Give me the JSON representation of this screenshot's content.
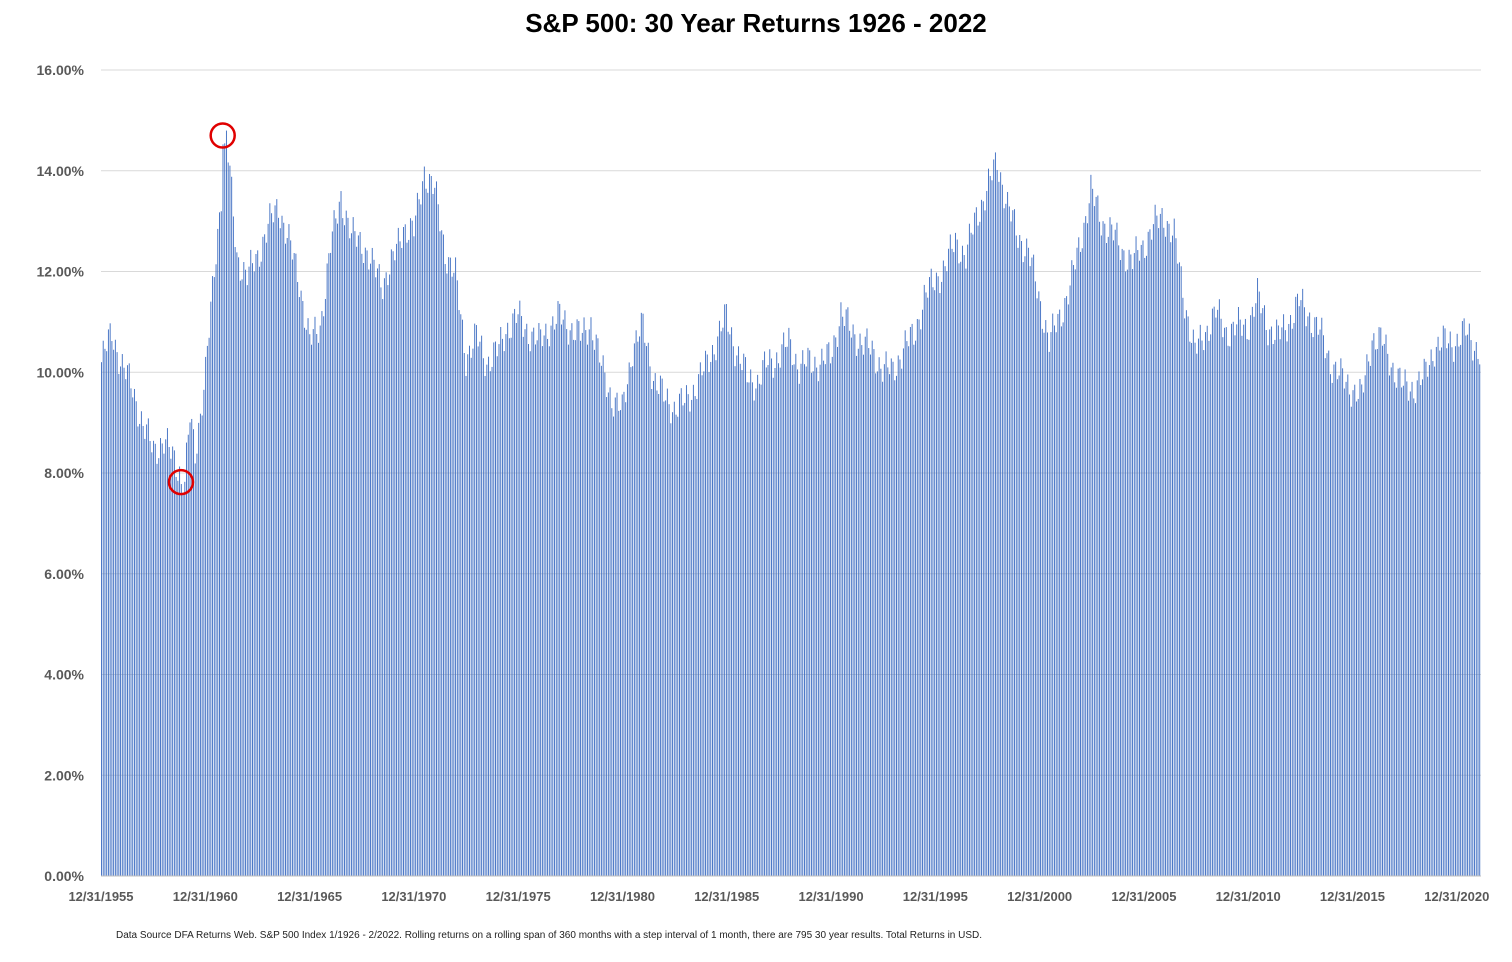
{
  "chart_data": {
    "type": "bar",
    "title": "S&P 500: 30 Year Returns 1926 - 2022",
    "footnote": "Data Source DFA Returns Web. S&P 500 Index 1/1926 - 2/2022. Rolling returns on a rolling span of 360 months with a step interval of 1 month, there are 795 30 year results. Total Returns in USD.",
    "xlabel": "",
    "ylabel": "",
    "ylim": [
      0,
      0.16
    ],
    "yticks": [
      {
        "value": 0.0,
        "label": "0.00%"
      },
      {
        "value": 0.02,
        "label": "2.00%"
      },
      {
        "value": 0.04,
        "label": "4.00%"
      },
      {
        "value": 0.06,
        "label": "6.00%"
      },
      {
        "value": 0.08,
        "label": "8.00%"
      },
      {
        "value": 0.1,
        "label": "10.00%"
      },
      {
        "value": 0.12,
        "label": "12.00%"
      },
      {
        "value": 0.14,
        "label": "14.00%"
      },
      {
        "value": 0.16,
        "label": "16.00%"
      }
    ],
    "xticks": [
      {
        "date": "1955-12-31",
        "label": "12/31/1955"
      },
      {
        "date": "1960-12-31",
        "label": "12/31/1960"
      },
      {
        "date": "1965-12-31",
        "label": "12/31/1965"
      },
      {
        "date": "1970-12-31",
        "label": "12/31/1970"
      },
      {
        "date": "1975-12-31",
        "label": "12/31/1975"
      },
      {
        "date": "1980-12-31",
        "label": "12/31/1980"
      },
      {
        "date": "1985-12-31",
        "label": "12/31/1985"
      },
      {
        "date": "1990-12-31",
        "label": "12/31/1990"
      },
      {
        "date": "1995-12-31",
        "label": "12/31/1995"
      },
      {
        "date": "2000-12-31",
        "label": "12/31/2000"
      },
      {
        "date": "2005-12-31",
        "label": "12/31/2005"
      },
      {
        "date": "2010-12-31",
        "label": "12/31/2010"
      },
      {
        "date": "2015-12-31",
        "label": "12/31/2015"
      },
      {
        "date": "2020-12-31",
        "label": "12/31/2020"
      }
    ],
    "x_range": [
      "1955-12-31",
      "2022-02-28"
    ],
    "grid": true,
    "legend": "none",
    "bar_color": "#4472C4",
    "gridline_color": "#D9D9D9",
    "highlight_color": "#E00000",
    "series": [
      {
        "values_by_date": [
          [
            "1955-12-31",
            0.102
          ],
          [
            "1956-06-30",
            0.108
          ],
          [
            "1956-12-31",
            0.101
          ],
          [
            "1957-06-30",
            0.097
          ],
          [
            "1957-12-31",
            0.089
          ],
          [
            "1958-06-30",
            0.085
          ],
          [
            "1958-12-31",
            0.086
          ],
          [
            "1959-06-30",
            0.083
          ],
          [
            "1959-12-31",
            0.078
          ],
          [
            "1960-03-31",
            0.091
          ],
          [
            "1960-06-30",
            0.084
          ],
          [
            "1960-12-31",
            0.1
          ],
          [
            "1961-06-30",
            0.124
          ],
          [
            "1961-12-31",
            0.147
          ],
          [
            "1962-06-30",
            0.123
          ],
          [
            "1962-12-31",
            0.119
          ],
          [
            "1963-06-30",
            0.123
          ],
          [
            "1963-12-31",
            0.129
          ],
          [
            "1964-06-30",
            0.133
          ],
          [
            "1964-12-31",
            0.126
          ],
          [
            "1965-06-30",
            0.118
          ],
          [
            "1965-12-31",
            0.106
          ],
          [
            "1966-06-30",
            0.109
          ],
          [
            "1966-12-31",
            0.125
          ],
          [
            "1967-06-30",
            0.135
          ],
          [
            "1967-12-31",
            0.127
          ],
          [
            "1968-06-30",
            0.126
          ],
          [
            "1968-12-31",
            0.121
          ],
          [
            "1969-06-30",
            0.118
          ],
          [
            "1969-12-31",
            0.122
          ],
          [
            "1970-06-30",
            0.129
          ],
          [
            "1970-12-31",
            0.128
          ],
          [
            "1971-06-30",
            0.14
          ],
          [
            "1971-12-31",
            0.136
          ],
          [
            "1972-06-30",
            0.124
          ],
          [
            "1972-12-31",
            0.119
          ],
          [
            "1973-06-30",
            0.103
          ],
          [
            "1973-12-31",
            0.107
          ],
          [
            "1974-06-30",
            0.102
          ],
          [
            "1974-12-31",
            0.104
          ],
          [
            "1975-06-30",
            0.109
          ],
          [
            "1975-12-31",
            0.111
          ],
          [
            "1976-06-30",
            0.108
          ],
          [
            "1976-12-31",
            0.106
          ],
          [
            "1977-06-30",
            0.109
          ],
          [
            "1977-12-31",
            0.111
          ],
          [
            "1978-06-30",
            0.109
          ],
          [
            "1978-12-31",
            0.107
          ],
          [
            "1979-06-30",
            0.11
          ],
          [
            "1979-12-31",
            0.101
          ],
          [
            "1980-06-30",
            0.095
          ],
          [
            "1980-12-31",
            0.092
          ],
          [
            "1981-06-30",
            0.105
          ],
          [
            "1981-12-31",
            0.109
          ],
          [
            "1982-06-30",
            0.099
          ],
          [
            "1982-12-31",
            0.095
          ],
          [
            "1983-06-30",
            0.093
          ],
          [
            "1983-12-31",
            0.094
          ],
          [
            "1984-06-30",
            0.097
          ],
          [
            "1984-12-31",
            0.101
          ],
          [
            "1985-06-30",
            0.106
          ],
          [
            "1985-12-31",
            0.111
          ],
          [
            "1986-06-30",
            0.104
          ],
          [
            "1986-12-31",
            0.099
          ],
          [
            "1987-06-30",
            0.098
          ],
          [
            "1987-12-31",
            0.102
          ],
          [
            "1988-06-30",
            0.103
          ],
          [
            "1988-12-31",
            0.106
          ],
          [
            "1989-06-30",
            0.101
          ],
          [
            "1989-12-31",
            0.102
          ],
          [
            "1990-06-30",
            0.102
          ],
          [
            "1990-12-31",
            0.103
          ],
          [
            "1991-06-30",
            0.112
          ],
          [
            "1991-12-31",
            0.108
          ],
          [
            "1992-06-30",
            0.106
          ],
          [
            "1992-12-31",
            0.104
          ],
          [
            "1993-06-30",
            0.101
          ],
          [
            "1993-12-31",
            0.1
          ],
          [
            "1994-06-30",
            0.105
          ],
          [
            "1994-12-31",
            0.107
          ],
          [
            "1995-06-30",
            0.115
          ],
          [
            "1995-12-31",
            0.118
          ],
          [
            "1996-06-30",
            0.121
          ],
          [
            "1996-12-31",
            0.126
          ],
          [
            "1997-06-30",
            0.123
          ],
          [
            "1997-12-31",
            0.131
          ],
          [
            "1998-06-30",
            0.136
          ],
          [
            "1998-12-31",
            0.142
          ],
          [
            "1999-06-30",
            0.133
          ],
          [
            "1999-12-31",
            0.127
          ],
          [
            "2000-06-30",
            0.124
          ],
          [
            "2000-12-31",
            0.115
          ],
          [
            "2001-06-30",
            0.106
          ],
          [
            "2001-12-31",
            0.111
          ],
          [
            "2002-06-30",
            0.117
          ],
          [
            "2002-12-31",
            0.126
          ],
          [
            "2003-06-30",
            0.136
          ],
          [
            "2003-12-31",
            0.13
          ],
          [
            "2004-06-30",
            0.128
          ],
          [
            "2004-12-31",
            0.124
          ],
          [
            "2005-06-30",
            0.122
          ],
          [
            "2005-12-31",
            0.125
          ],
          [
            "2006-06-30",
            0.129
          ],
          [
            "2006-12-31",
            0.131
          ],
          [
            "2007-06-30",
            0.127
          ],
          [
            "2007-12-31",
            0.114
          ],
          [
            "2008-06-30",
            0.104
          ],
          [
            "2008-12-31",
            0.108
          ],
          [
            "2009-06-30",
            0.112
          ],
          [
            "2009-12-31",
            0.108
          ],
          [
            "2010-06-30",
            0.109
          ],
          [
            "2010-12-31",
            0.109
          ],
          [
            "2011-06-30",
            0.115
          ],
          [
            "2011-12-31",
            0.109
          ],
          [
            "2012-06-30",
            0.107
          ],
          [
            "2012-12-31",
            0.11
          ],
          [
            "2013-06-30",
            0.114
          ],
          [
            "2013-12-31",
            0.111
          ],
          [
            "2014-06-30",
            0.108
          ],
          [
            "2014-12-31",
            0.102
          ],
          [
            "2015-06-30",
            0.099
          ],
          [
            "2015-12-31",
            0.097
          ],
          [
            "2016-06-30",
            0.095
          ],
          [
            "2016-12-31",
            0.107
          ],
          [
            "2017-06-30",
            0.106
          ],
          [
            "2017-12-31",
            0.101
          ],
          [
            "2018-06-30",
            0.097
          ],
          [
            "2018-12-31",
            0.097
          ],
          [
            "2019-06-30",
            0.099
          ],
          [
            "2019-12-31",
            0.105
          ],
          [
            "2020-06-30",
            0.106
          ],
          [
            "2020-12-31",
            0.106
          ],
          [
            "2021-06-30",
            0.108
          ],
          [
            "2022-02-28",
            0.104
          ]
        ]
      }
    ],
    "highlights": [
      {
        "date": "1961-10-31",
        "value": 0.147,
        "kind": "max"
      },
      {
        "date": "1959-10-31",
        "value": 0.078,
        "kind": "min"
      }
    ]
  }
}
